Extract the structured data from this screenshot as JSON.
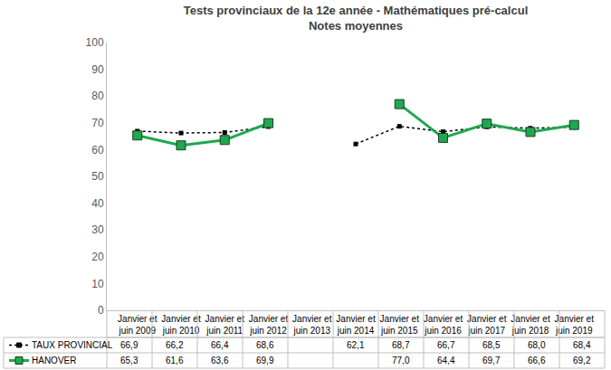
{
  "chart_data": {
    "type": "line",
    "title": "Tests provinciaux de la 12e année - Mathématiques pré-calcul",
    "subtitle": "Notes moyennes",
    "categories": [
      "Janvier et juin 2009",
      "Janvier et juin 2010",
      "Janvier et juin 2011",
      "Janvier et juin 2012",
      "Janvier et juin 2013",
      "Janvier et juin 2014",
      "Janvier et juin 2015",
      "Janvier et juin 2016",
      "Janvier et juin 2017",
      "Janvier et juin 2018",
      "Janvier et juin 2019"
    ],
    "ylim": [
      0,
      100
    ],
    "yticks": [
      0,
      10,
      20,
      30,
      40,
      50,
      60,
      70,
      80,
      90,
      100
    ],
    "grid": false,
    "series": [
      {
        "name": "TAUX PROVINCIAL",
        "color": "#000000",
        "marker": "square",
        "line_style": "dotted",
        "values": [
          66.9,
          66.2,
          66.4,
          68.6,
          null,
          62.1,
          68.7,
          66.7,
          68.5,
          68.0,
          68.4
        ],
        "value_labels": [
          "66,9",
          "66,2",
          "66,4",
          "68,6",
          null,
          "62,1",
          "68,7",
          "66,7",
          "68,5",
          "68,0",
          "68,4"
        ]
      },
      {
        "name": "HANOVER",
        "color": "#1fa84f",
        "marker": "square",
        "line_style": "solid",
        "values": [
          65.3,
          61.6,
          63.6,
          69.9,
          null,
          null,
          77.0,
          64.4,
          69.7,
          66.6,
          69.2
        ],
        "value_labels": [
          "65,3",
          "61,6",
          "63,6",
          "69,9",
          null,
          null,
          "77,0",
          "64,4",
          "69,7",
          "66,6",
          "69,2"
        ]
      }
    ]
  }
}
